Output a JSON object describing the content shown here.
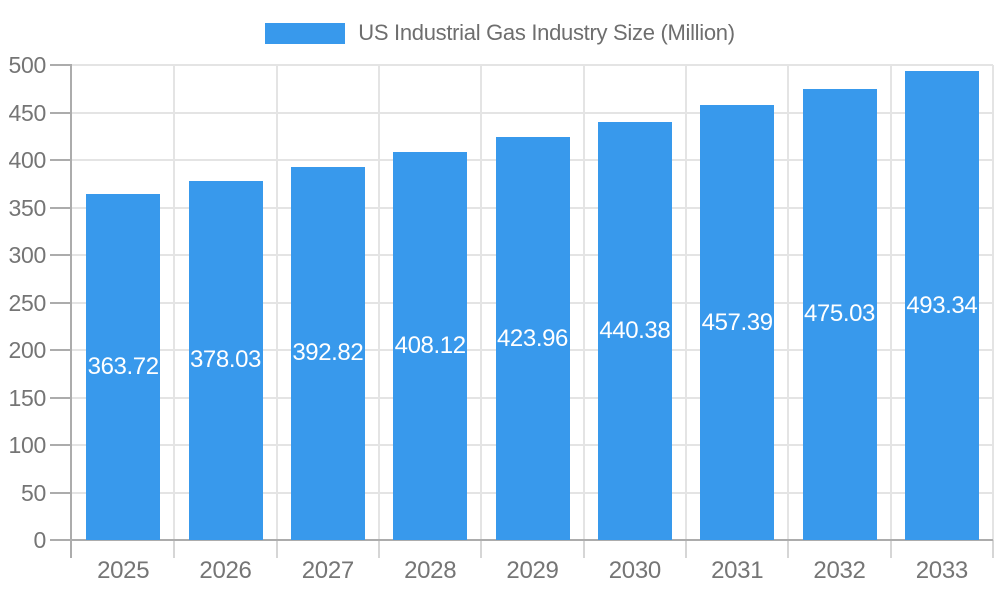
{
  "chart_data": {
    "type": "bar",
    "legend": [
      "US Industrial Gas Industry Size (Million)"
    ],
    "legend_position": "top-center",
    "categories": [
      "2025",
      "2026",
      "2027",
      "2028",
      "2029",
      "2030",
      "2031",
      "2032",
      "2033"
    ],
    "values": [
      363.72,
      378.03,
      392.82,
      408.12,
      423.96,
      440.38,
      457.39,
      475.03,
      493.34
    ],
    "value_labels": [
      "363.72",
      "378.03",
      "392.82",
      "408.12",
      "423.96",
      "440.38",
      "457.39",
      "475.03",
      "493.34"
    ],
    "bar_label_position": "inside-center",
    "ylim": [
      0,
      500
    ],
    "y_ticks": [
      0,
      50,
      100,
      150,
      200,
      250,
      300,
      350,
      400,
      450,
      500
    ],
    "grid": true,
    "colors": {
      "bar": "#3899EC",
      "grid": "#E4E4E4",
      "axis": "#ACACAC",
      "category_tick": "#D6D6D6",
      "axis_label_text": "#757575",
      "legend_text": "#6E6E6E",
      "bar_value_text": "#FFFFFF",
      "background": "#FFFFFF"
    }
  }
}
